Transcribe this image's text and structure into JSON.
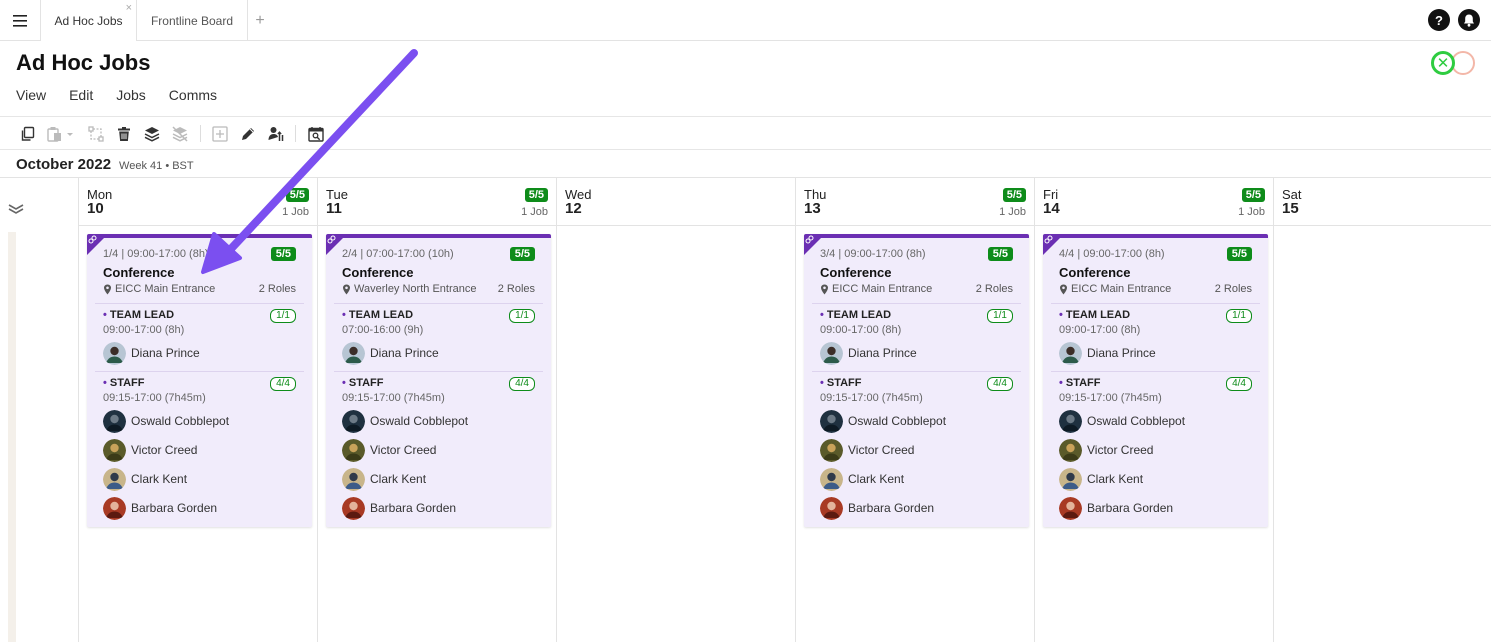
{
  "tabbar": {
    "tabs": [
      {
        "label": "Ad Hoc Jobs",
        "close": "×"
      },
      {
        "label": "Frontline Board"
      }
    ],
    "add_label": "+",
    "help_label": "?"
  },
  "header": {
    "title": "Ad Hoc Jobs",
    "menu": [
      "View",
      "Edit",
      "Jobs",
      "Comms"
    ]
  },
  "toolbar": {
    "icons": [
      "copy-icon",
      "paste-icon",
      "link-icon",
      "delete-icon",
      "layers-icon",
      "hide-layers-icon",
      "add-icon",
      "edit-icon",
      "assign-icon",
      "calendar-search-icon"
    ]
  },
  "date_bar": {
    "month": "October 2022",
    "week": "Week 41 • BST"
  },
  "days": [
    {
      "dow": "Mon",
      "date": "10",
      "badge": "5/5",
      "jobs": "1 Job"
    },
    {
      "dow": "Tue",
      "date": "11",
      "badge": "5/5",
      "jobs": "1 Job"
    },
    {
      "dow": "Wed",
      "date": "12"
    },
    {
      "dow": "Thu",
      "date": "13",
      "badge": "5/5",
      "jobs": "1 Job"
    },
    {
      "dow": "Fri",
      "date": "14",
      "badge": "5/5",
      "jobs": "1 Job"
    },
    {
      "dow": "Sat",
      "date": "15"
    }
  ],
  "cards": [
    {
      "meta": "1/4 | 09:00-17:00 (8h)",
      "badge": "5/5",
      "title": "Conference",
      "location": "EICC Main Entrance",
      "roles": "2 Roles",
      "lead_name": "TEAM LEAD",
      "lead_count": "1/1",
      "lead_time": "09:00-17:00 (8h)",
      "lead_person": "Diana Prince",
      "staff_name": "STAFF",
      "staff_count": "4/4",
      "staff_time": "09:15-17:00 (7h45m)",
      "staff": [
        "Oswald Cobblepot",
        "Victor Creed",
        "Clark Kent",
        "Barbara Gorden"
      ]
    },
    {
      "meta": "2/4 | 07:00-17:00 (10h)",
      "badge": "5/5",
      "title": "Conference",
      "location": "Waverley North Entrance",
      "roles": "2 Roles",
      "lead_name": "TEAM LEAD",
      "lead_count": "1/1",
      "lead_time": "07:00-16:00 (9h)",
      "lead_person": "Diana Prince",
      "staff_name": "STAFF",
      "staff_count": "4/4",
      "staff_time": "09:15-17:00 (7h45m)",
      "staff": [
        "Oswald Cobblepot",
        "Victor Creed",
        "Clark Kent",
        "Barbara Gorden"
      ]
    },
    {
      "meta": "3/4 | 09:00-17:00 (8h)",
      "badge": "5/5",
      "title": "Conference",
      "location": "EICC Main Entrance",
      "roles": "2 Roles",
      "lead_name": "TEAM LEAD",
      "lead_count": "1/1",
      "lead_time": "09:00-17:00 (8h)",
      "lead_person": "Diana Prince",
      "staff_name": "STAFF",
      "staff_count": "4/4",
      "staff_time": "09:15-17:00 (7h45m)",
      "staff": [
        "Oswald Cobblepot",
        "Victor Creed",
        "Clark Kent",
        "Barbara Gorden"
      ]
    },
    {
      "meta": "4/4 | 09:00-17:00 (8h)",
      "badge": "5/5",
      "title": "Conference",
      "location": "EICC Main Entrance",
      "roles": "2 Roles",
      "lead_name": "TEAM LEAD",
      "lead_count": "1/1",
      "lead_time": "09:00-17:00 (8h)",
      "lead_person": "Diana Prince",
      "staff_name": "STAFF",
      "staff_count": "4/4",
      "staff_time": "09:15-17:00 (7h45m)",
      "staff": [
        "Oswald Cobblepot",
        "Victor Creed",
        "Clark Kent",
        "Barbara Gorden"
      ]
    }
  ],
  "colors": {
    "accent_purple": "#6b2fb3",
    "card_bg": "#f1ecfb",
    "badge_green": "#0e8c1a",
    "arrow": "#7b4ff0"
  }
}
